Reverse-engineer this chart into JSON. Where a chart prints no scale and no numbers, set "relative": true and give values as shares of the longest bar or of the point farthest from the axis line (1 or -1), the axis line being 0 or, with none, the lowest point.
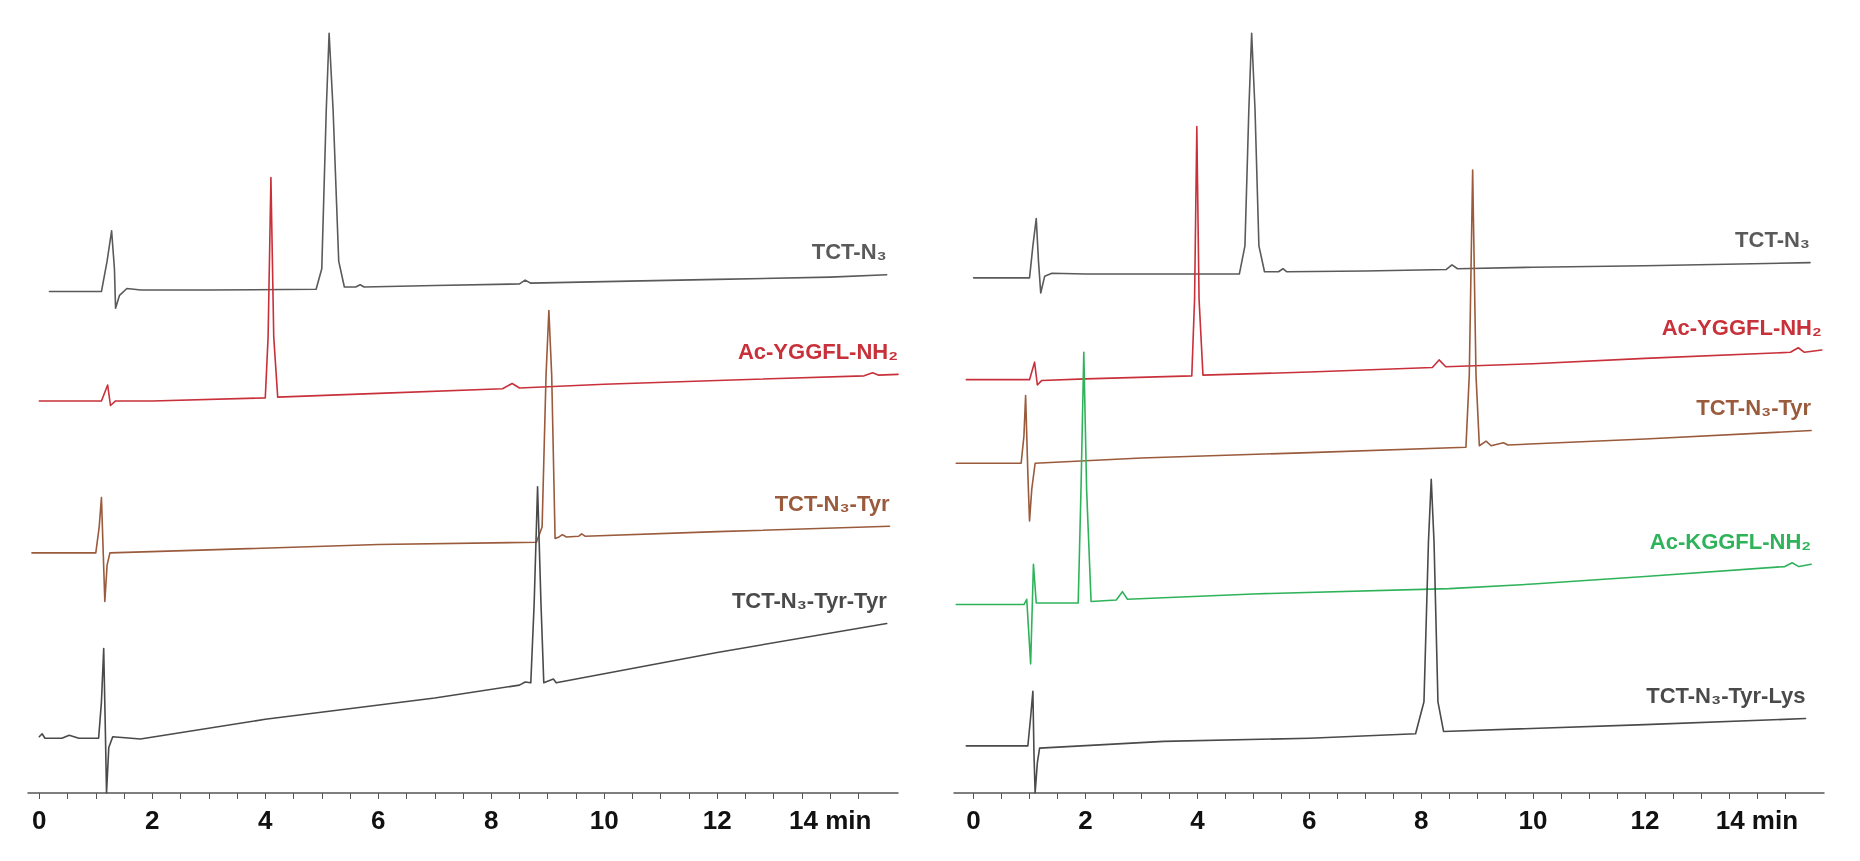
{
  "chart_data": [
    {
      "type": "line",
      "relative": true,
      "tick_labels": "x",
      "grid": false,
      "legend": false,
      "marker": "none",
      "line_style": "solid",
      "xlim": [
        -0.2,
        15.2
      ],
      "xticks": [
        0,
        {
          "value": 0.5,
          "label": null
        },
        {
          "value": 1,
          "label": null
        },
        {
          "value": 1.5,
          "label": null
        },
        2,
        {
          "value": 2.5,
          "label": null
        },
        {
          "value": 3,
          "label": null
        },
        {
          "value": 3.5,
          "label": null
        },
        4,
        {
          "value": 4.5,
          "label": null
        },
        {
          "value": 5,
          "label": null
        },
        {
          "value": 5.5,
          "label": null
        },
        6,
        {
          "value": 6.5,
          "label": null
        },
        {
          "value": 7,
          "label": null
        },
        {
          "value": 7.5,
          "label": null
        },
        8,
        {
          "value": 8.5,
          "label": null
        },
        {
          "value": 9,
          "label": null
        },
        {
          "value": 9.5,
          "label": null
        },
        10,
        {
          "value": 10.5,
          "label": null
        },
        {
          "value": 11,
          "label": null
        },
        {
          "value": 11.5,
          "label": null
        },
        12,
        {
          "value": 12.5,
          "label": null
        },
        {
          "value": 13,
          "label": null
        },
        {
          "value": 13.5,
          "label": null
        },
        {
          "value": 14,
          "label": "14 min"
        },
        {
          "value": 14.5,
          "label": null
        }
      ],
      "series": [
        {
          "name": "TCT-N₃",
          "color": "#5a5a5a",
          "x": [
            0.18,
            1.1,
            1.2,
            1.28,
            1.33,
            1.35,
            1.42,
            1.55,
            1.8,
            3,
            4.9,
            5.0,
            5.08,
            5.13,
            5.2,
            5.3,
            5.4,
            5.6,
            5.68,
            5.75,
            7,
            8.5,
            8.6,
            8.7,
            10,
            12,
            14,
            15.0
          ],
          "values": [
            0.66,
            0.66,
            0.7,
            0.74,
            0.69,
            0.638,
            0.655,
            0.664,
            0.662,
            0.662,
            0.663,
            0.69,
            0.9,
            1.0,
            0.9,
            0.7,
            0.666,
            0.666,
            0.669,
            0.666,
            0.668,
            0.67,
            0.675,
            0.671,
            0.673,
            0.676,
            0.679,
            0.682
          ]
        },
        {
          "name": "Ac-YGGFL-NH₂",
          "color": "#c8303a",
          "x": [
            0,
            1.1,
            1.21,
            1.26,
            1.35,
            2,
            4.0,
            4.05,
            4.1,
            4.15,
            4.22,
            6,
            8.2,
            8.37,
            8.5,
            10,
            12,
            14.6,
            14.75,
            14.85,
            15.2
          ],
          "values": [
            0.516,
            0.516,
            0.537,
            0.51,
            0.516,
            0.516,
            0.52,
            0.6,
            0.81,
            0.6,
            0.521,
            0.526,
            0.532,
            0.539,
            0.533,
            0.538,
            0.543,
            0.549,
            0.553,
            0.55,
            0.551
          ]
        },
        {
          "name": "TCT-N₃-Tyr",
          "color": "#9a5a3c",
          "x": [
            -0.13,
            1.0,
            1.06,
            1.1,
            1.13,
            1.16,
            1.2,
            1.25,
            3,
            6,
            8.8,
            8.9,
            8.97,
            9.02,
            9.07,
            9.13,
            9.2,
            9.26,
            9.33,
            9.55,
            9.6,
            9.66,
            12,
            15.05
          ],
          "values": [
            0.316,
            0.316,
            0.35,
            0.389,
            0.32,
            0.252,
            0.3,
            0.316,
            0.32,
            0.327,
            0.33,
            0.35,
            0.55,
            0.635,
            0.55,
            0.335,
            0.337,
            0.34,
            0.337,
            0.338,
            0.341,
            0.338,
            0.344,
            0.351
          ]
        },
        {
          "name": "TCT-N₃-Tyr-Tyr",
          "color": "#4a4a4a",
          "x": [
            0,
            0.05,
            0.1,
            0.4,
            0.53,
            0.7,
            1.05,
            1.1,
            1.14,
            1.17,
            1.19,
            1.23,
            1.3,
            1.79,
            4,
            7,
            8.5,
            8.6,
            8.7,
            8.76,
            8.82,
            8.88,
            8.93,
            9.1,
            9.15,
            12,
            15.0
          ],
          "values": [
            0.074,
            0.078,
            0.072,
            0.072,
            0.076,
            0.072,
            0.072,
            0.12,
            0.19,
            0.08,
            0.0,
            0.06,
            0.074,
            0.071,
            0.097,
            0.125,
            0.142,
            0.146,
            0.145,
            0.25,
            0.403,
            0.25,
            0.145,
            0.15,
            0.145,
            0.185,
            0.223
          ]
        }
      ]
    },
    {
      "type": "line",
      "relative": true,
      "tick_labels": "x",
      "grid": false,
      "legend": false,
      "marker": "none",
      "line_style": "solid",
      "xlim": [
        -0.35,
        15.2
      ],
      "xticks": [
        0,
        {
          "value": 0.5,
          "label": null
        },
        {
          "value": 1,
          "label": null
        },
        {
          "value": 1.5,
          "label": null
        },
        2,
        {
          "value": 2.5,
          "label": null
        },
        {
          "value": 3,
          "label": null
        },
        {
          "value": 3.5,
          "label": null
        },
        4,
        {
          "value": 4.5,
          "label": null
        },
        {
          "value": 5,
          "label": null
        },
        {
          "value": 5.5,
          "label": null
        },
        6,
        {
          "value": 6.5,
          "label": null
        },
        {
          "value": 7,
          "label": null
        },
        {
          "value": 7.5,
          "label": null
        },
        8,
        {
          "value": 8.5,
          "label": null
        },
        {
          "value": 9,
          "label": null
        },
        {
          "value": 9.5,
          "label": null
        },
        10,
        {
          "value": 10.5,
          "label": null
        },
        {
          "value": 11,
          "label": null
        },
        {
          "value": 11.5,
          "label": null
        },
        12,
        {
          "value": 12.5,
          "label": null
        },
        {
          "value": 13,
          "label": null
        },
        {
          "value": 13.5,
          "label": null
        },
        {
          "value": 14,
          "label": "14 min"
        },
        {
          "value": 14.5,
          "label": null
        }
      ],
      "series": [
        {
          "name": "TCT-N₃",
          "color": "#5a5a5a",
          "x": [
            0,
            1.0,
            1.06,
            1.12,
            1.16,
            1.2,
            1.27,
            1.4,
            2,
            4.75,
            4.85,
            4.92,
            4.97,
            5.03,
            5.1,
            5.2,
            5.45,
            5.53,
            5.6,
            7,
            8.45,
            8.55,
            8.65,
            10,
            12,
            14.95
          ],
          "values": [
            0.678,
            0.678,
            0.72,
            0.756,
            0.7,
            0.658,
            0.68,
            0.684,
            0.683,
            0.683,
            0.72,
            0.9,
            1.0,
            0.9,
            0.72,
            0.686,
            0.686,
            0.69,
            0.686,
            0.687,
            0.689,
            0.695,
            0.69,
            0.692,
            0.694,
            0.698
          ]
        },
        {
          "name": "Ac-YGGFL-NH₂",
          "color": "#c8303a",
          "x": [
            -0.13,
            1.0,
            1.09,
            1.14,
            1.22,
            2,
            3.9,
            3.95,
            3.99,
            4.03,
            4.1,
            6,
            8.2,
            8.32,
            8.44,
            10,
            12,
            14.6,
            14.74,
            14.85,
            15.16
          ],
          "values": [
            0.544,
            0.544,
            0.567,
            0.537,
            0.543,
            0.545,
            0.549,
            0.65,
            0.877,
            0.65,
            0.55,
            0.554,
            0.56,
            0.57,
            0.561,
            0.565,
            0.572,
            0.58,
            0.586,
            0.58,
            0.583
          ]
        },
        {
          "name": "TCT-N₃-Tyr",
          "color": "#9a5a3c",
          "x": [
            -0.31,
            0.85,
            0.9,
            0.93,
            0.97,
            1.0,
            1.04,
            1.1,
            3,
            6,
            8.8,
            8.86,
            8.92,
            8.98,
            9.04,
            9.16,
            9.25,
            9.47,
            9.55,
            12,
            14.97
          ],
          "values": [
            0.434,
            0.434,
            0.47,
            0.523,
            0.42,
            0.358,
            0.4,
            0.434,
            0.441,
            0.448,
            0.455,
            0.55,
            0.82,
            0.55,
            0.457,
            0.463,
            0.457,
            0.461,
            0.458,
            0.466,
            0.477
          ]
        },
        {
          "name": "Ac-KGGFL-NH₂",
          "color": "#2fb35a",
          "x": [
            -0.31,
            0.9,
            0.95,
            1.02,
            1.07,
            1.12,
            1.2,
            1.87,
            1.92,
            1.97,
            2.02,
            2.1,
            2.55,
            2.66,
            2.75,
            5,
            8.5,
            10,
            12,
            14.5,
            14.63,
            14.75,
            14.97
          ],
          "values": [
            0.248,
            0.248,
            0.255,
            0.17,
            0.301,
            0.25,
            0.25,
            0.25,
            0.4,
            0.58,
            0.4,
            0.252,
            0.254,
            0.265,
            0.255,
            0.262,
            0.269,
            0.275,
            0.285,
            0.298,
            0.303,
            0.298,
            0.301
          ]
        },
        {
          "name": "TCT-N₃-Tyr-Lys",
          "color": "#4a4a4a",
          "x": [
            -0.13,
            0.97,
            1.02,
            1.06,
            1.08,
            1.1,
            1.14,
            1.18,
            3.4,
            6,
            7.9,
            8.05,
            8.13,
            8.18,
            8.23,
            8.3,
            8.4,
            12,
            14.87
          ],
          "values": [
            0.062,
            0.062,
            0.1,
            0.134,
            0.05,
            0.0,
            0.04,
            0.059,
            0.068,
            0.072,
            0.078,
            0.12,
            0.33,
            0.413,
            0.33,
            0.12,
            0.081,
            0.09,
            0.098
          ]
        }
      ]
    }
  ]
}
